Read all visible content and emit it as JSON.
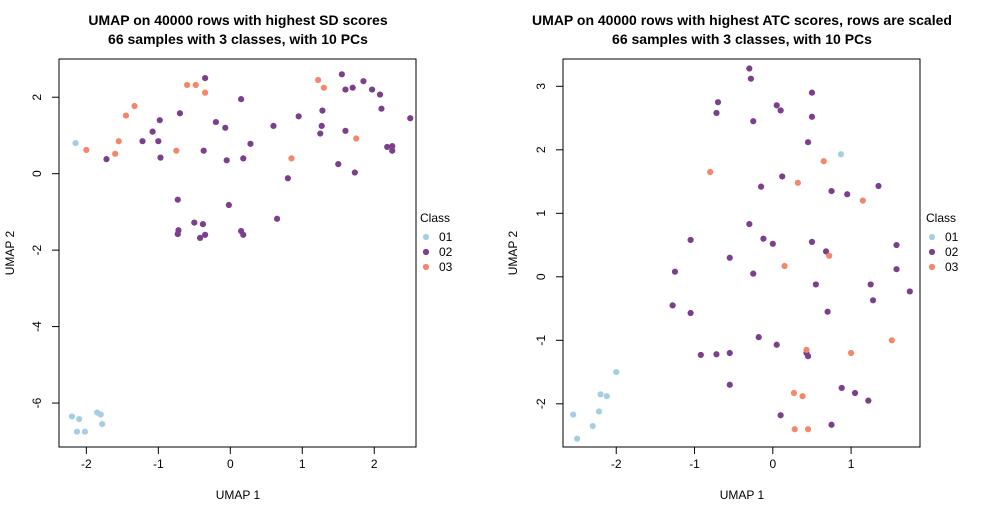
{
  "colors": {
    "01": "#a6cee3",
    "02": "#7b3f8c",
    "03": "#f4866b"
  },
  "chart_data": [
    {
      "type": "scatter",
      "title_line1": "UMAP on 40000 rows with highest SD scores",
      "title_line2": "66 samples with 3 classes, with 10 PCs",
      "xlabel": "UMAP 1",
      "ylabel": "UMAP 2",
      "xlim": [
        -2.38,
        2.58
      ],
      "ylim": [
        -7.15,
        3.0
      ],
      "xticks": [
        -2,
        -1,
        0,
        1,
        2
      ],
      "yticks": [
        -6,
        -4,
        -2,
        0,
        2
      ],
      "legend": {
        "title": "Class",
        "entries": [
          "01",
          "02",
          "03"
        ],
        "position": "right"
      },
      "series": [
        {
          "name": "01",
          "points": [
            [
              -2.15,
              0.8
            ],
            [
              -2.2,
              -6.35
            ],
            [
              -2.13,
              -6.75
            ],
            [
              -2.1,
              -6.42
            ],
            [
              -2.02,
              -6.75
            ],
            [
              -1.85,
              -6.25
            ],
            [
              -1.8,
              -6.3
            ],
            [
              -1.78,
              -6.55
            ]
          ]
        },
        {
          "name": "02",
          "points": [
            [
              -1.72,
              0.38
            ],
            [
              -1.22,
              0.85
            ],
            [
              -1.08,
              1.1
            ],
            [
              -0.98,
              1.4
            ],
            [
              -1.0,
              0.85
            ],
            [
              -0.97,
              0.42
            ],
            [
              -0.7,
              1.58
            ],
            [
              -0.73,
              -0.68
            ],
            [
              -0.72,
              -1.48
            ],
            [
              -0.73,
              -1.58
            ],
            [
              -0.5,
              -1.28
            ],
            [
              -0.42,
              -1.68
            ],
            [
              -0.38,
              -1.32
            ],
            [
              -0.35,
              -1.6
            ],
            [
              -0.35,
              2.5
            ],
            [
              -0.37,
              0.6
            ],
            [
              -0.2,
              1.35
            ],
            [
              -0.07,
              1.2
            ],
            [
              -0.05,
              0.35
            ],
            [
              -0.02,
              -0.82
            ],
            [
              0.15,
              1.95
            ],
            [
              0.15,
              -1.5
            ],
            [
              0.18,
              -1.6
            ],
            [
              0.18,
              0.4
            ],
            [
              0.28,
              0.78
            ],
            [
              0.6,
              1.25
            ],
            [
              0.65,
              -1.18
            ],
            [
              0.8,
              -0.12
            ],
            [
              0.95,
              1.5
            ],
            [
              1.25,
              1.05
            ],
            [
              1.27,
              1.25
            ],
            [
              1.28,
              1.65
            ],
            [
              1.5,
              0.25
            ],
            [
              1.55,
              2.6
            ],
            [
              1.6,
              2.2
            ],
            [
              1.6,
              1.12
            ],
            [
              1.7,
              2.25
            ],
            [
              1.73,
              0.03
            ],
            [
              1.85,
              2.42
            ],
            [
              1.97,
              2.2
            ],
            [
              2.08,
              2.07
            ],
            [
              2.1,
              1.7
            ],
            [
              2.18,
              0.7
            ],
            [
              2.25,
              0.72
            ],
            [
              2.25,
              0.6
            ],
            [
              2.5,
              1.45
            ]
          ]
        },
        {
          "name": "03",
          "points": [
            [
              -2.0,
              0.62
            ],
            [
              -1.6,
              0.52
            ],
            [
              -1.55,
              0.85
            ],
            [
              -1.45,
              1.52
            ],
            [
              -1.33,
              1.77
            ],
            [
              -0.75,
              0.6
            ],
            [
              -0.6,
              2.32
            ],
            [
              -0.48,
              2.32
            ],
            [
              -0.35,
              2.12
            ],
            [
              0.85,
              0.4
            ],
            [
              1.22,
              2.45
            ],
            [
              1.3,
              2.25
            ],
            [
              1.75,
              0.92
            ]
          ]
        }
      ]
    },
    {
      "type": "scatter",
      "title_line1": "UMAP on 40000 rows with highest ATC scores, rows are scaled",
      "title_line2": "66 samples with 3 classes, with 10 PCs",
      "xlabel": "UMAP 1",
      "ylabel": "UMAP 2",
      "xlim": [
        -2.68,
        1.88
      ],
      "ylim": [
        -2.68,
        3.43
      ],
      "xticks": [
        -2,
        -1,
        0,
        1
      ],
      "yticks": [
        -2,
        -1,
        0,
        1,
        2,
        3
      ],
      "legend": {
        "title": "Class",
        "entries": [
          "01",
          "02",
          "03"
        ],
        "position": "right"
      },
      "series": [
        {
          "name": "01",
          "points": [
            [
              0.87,
              1.93
            ],
            [
              -2.0,
              -1.5
            ],
            [
              -2.2,
              -1.85
            ],
            [
              -2.12,
              -1.88
            ],
            [
              -2.22,
              -2.12
            ],
            [
              -2.3,
              -2.35
            ],
            [
              -2.55,
              -2.17
            ],
            [
              -2.5,
              -2.55
            ]
          ]
        },
        {
          "name": "02",
          "points": [
            [
              -0.3,
              3.28
            ],
            [
              -0.28,
              3.12
            ],
            [
              -0.7,
              2.75
            ],
            [
              -0.72,
              2.58
            ],
            [
              -0.25,
              2.45
            ],
            [
              0.05,
              2.7
            ],
            [
              0.1,
              2.62
            ],
            [
              0.5,
              2.9
            ],
            [
              0.5,
              2.52
            ],
            [
              0.45,
              2.12
            ],
            [
              -0.15,
              1.42
            ],
            [
              0.12,
              1.58
            ],
            [
              0.75,
              1.35
            ],
            [
              0.95,
              1.3
            ],
            [
              1.35,
              1.43
            ],
            [
              -1.05,
              0.58
            ],
            [
              -0.55,
              0.3
            ],
            [
              -0.3,
              0.83
            ],
            [
              -0.12,
              0.6
            ],
            [
              0.0,
              0.52
            ],
            [
              -0.25,
              0.05
            ],
            [
              0.5,
              0.55
            ],
            [
              0.68,
              0.4
            ],
            [
              1.58,
              0.5
            ],
            [
              -1.25,
              0.08
            ],
            [
              1.25,
              -0.12
            ],
            [
              1.58,
              0.12
            ],
            [
              0.55,
              -0.12
            ],
            [
              -1.28,
              -0.45
            ],
            [
              -1.05,
              -0.57
            ],
            [
              1.28,
              -0.37
            ],
            [
              0.7,
              -0.55
            ],
            [
              1.75,
              -0.23
            ],
            [
              -0.18,
              -0.95
            ],
            [
              0.05,
              -1.07
            ],
            [
              -0.55,
              -1.2
            ],
            [
              -0.72,
              -1.22
            ],
            [
              -0.92,
              -1.23
            ],
            [
              0.43,
              -1.2
            ],
            [
              0.45,
              -1.25
            ],
            [
              -0.55,
              -1.7
            ],
            [
              0.88,
              -1.75
            ],
            [
              1.05,
              -1.83
            ],
            [
              1.22,
              -1.95
            ],
            [
              0.1,
              -2.18
            ],
            [
              0.75,
              -2.33
            ]
          ]
        },
        {
          "name": "03",
          "points": [
            [
              -0.8,
              1.65
            ],
            [
              0.65,
              1.82
            ],
            [
              0.32,
              1.48
            ],
            [
              1.15,
              1.2
            ],
            [
              0.15,
              0.17
            ],
            [
              0.72,
              0.33
            ],
            [
              0.43,
              -1.15
            ],
            [
              1.0,
              -1.2
            ],
            [
              1.52,
              -1.0
            ],
            [
              0.27,
              -1.83
            ],
            [
              0.38,
              -1.88
            ],
            [
              0.28,
              -2.4
            ],
            [
              0.45,
              -2.4
            ]
          ]
        }
      ]
    }
  ]
}
